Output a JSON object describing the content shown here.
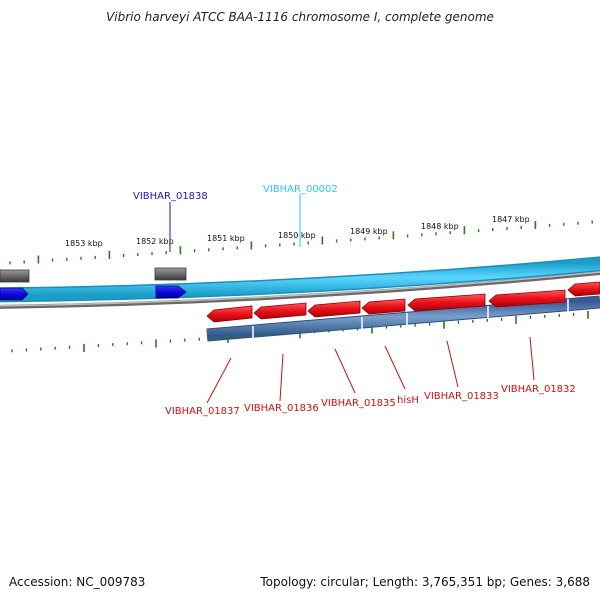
{
  "title": "Vibrio harveyi ATCC BAA-1116 chromosome I, complete genome",
  "colors": {
    "background": "#ffffff",
    "forward_track": "#2ec6f2",
    "forward_gene": "#0a0add",
    "reverse_gene": "#e8121a",
    "reverse_track": "#4a7bb0",
    "backbone": "#888888",
    "tick": "#2a7a1a",
    "label_forward": "#1a1aaa",
    "label_cyan": "#2ec6f2",
    "label_reverse": "#cc1111"
  },
  "scale": {
    "unit": "kbp",
    "ticks": [
      {
        "kbp": 1853,
        "label": "1853 kbp"
      },
      {
        "kbp": 1852,
        "label": "1852 kbp"
      },
      {
        "kbp": 1851,
        "label": "1851 kbp"
      },
      {
        "kbp": 1850,
        "label": "1850 kbp"
      },
      {
        "kbp": 1849,
        "label": "1849 kbp"
      },
      {
        "kbp": 1848,
        "label": "1848 kbp"
      },
      {
        "kbp": 1847,
        "label": "1847 kbp"
      }
    ]
  },
  "genes_forward": [
    {
      "name": "VIBHAR_01838",
      "color": "label_forward"
    },
    {
      "name": "VIBHAR_00002",
      "color": "label_cyan"
    }
  ],
  "genes_reverse": [
    {
      "name": "VIBHAR_01837"
    },
    {
      "name": "VIBHAR_01836"
    },
    {
      "name": "VIBHAR_01835"
    },
    {
      "name": "hisH"
    },
    {
      "name": "VIBHAR_01833"
    },
    {
      "name": "VIBHAR_01832"
    }
  ],
  "footer": {
    "accession": "Accession: NC_009783",
    "summary": "Topology: circular; Length: 3,765,351 bp; Genes: 3,688"
  }
}
